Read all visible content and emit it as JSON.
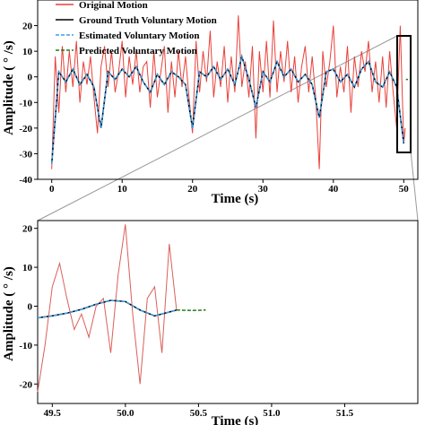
{
  "chart_data": [
    {
      "type": "line",
      "xlabel": "Time (s)",
      "ylabel": "Amplitude ( ° /s)",
      "xlim": [
        -2,
        52
      ],
      "ylim": [
        -40,
        30
      ],
      "xticks": [
        0,
        10,
        20,
        30,
        40,
        50
      ],
      "yticks": [
        -40,
        -30,
        -20,
        -10,
        0,
        10,
        20
      ],
      "legend_position": "top-left",
      "series": [
        {
          "name": "Original Motion",
          "color": "#e8413a",
          "style": "solid",
          "x": [
            0,
            0.5,
            1,
            1.5,
            2,
            2.5,
            3,
            3.5,
            4,
            4.5,
            5,
            5.5,
            6,
            6.5,
            7,
            7.5,
            8,
            8.5,
            9,
            9.5,
            10,
            10.5,
            11,
            11.5,
            12,
            12.5,
            13,
            13.5,
            14,
            14.5,
            15,
            15.5,
            16,
            16.5,
            17,
            17.5,
            18,
            18.5,
            19,
            19.5,
            20,
            20.5,
            21,
            21.5,
            22,
            22.5,
            23,
            23.5,
            24,
            24.5,
            25,
            25.5,
            26,
            26.5,
            27,
            27.5,
            28,
            28.5,
            29,
            29.5,
            30,
            30.5,
            31,
            31.5,
            32,
            32.5,
            33,
            33.5,
            34,
            34.5,
            35,
            35.5,
            36,
            36.5,
            37,
            37.5,
            38,
            38.5,
            39,
            39.5,
            40,
            40.5,
            41,
            41.5,
            42,
            42.5,
            43,
            43.5,
            44,
            44.5,
            45,
            45.5,
            46,
            46.5,
            47,
            47.5,
            48,
            48.5,
            49,
            49.5,
            50,
            50.2
          ],
          "y": [
            -36,
            8,
            -14,
            12,
            -6,
            10,
            -4,
            14,
            -10,
            6,
            -3,
            8,
            -8,
            -22,
            4,
            12,
            -4,
            10,
            -6,
            2,
            14,
            -8,
            8,
            -3,
            10,
            -6,
            4,
            6,
            -12,
            10,
            -8,
            2,
            12,
            -14,
            6,
            -8,
            10,
            -4,
            8,
            -8,
            -22,
            14,
            -6,
            10,
            -2,
            18,
            -8,
            6,
            -4,
            12,
            -10,
            8,
            -6,
            24,
            -4,
            6,
            -8,
            12,
            -24,
            10,
            -6,
            14,
            -8,
            22,
            -6,
            10,
            -2,
            14,
            -6,
            8,
            -10,
            4,
            12,
            -6,
            8,
            -8,
            -36,
            10,
            -4,
            6,
            20,
            -8,
            4,
            -6,
            12,
            -14,
            8,
            -4,
            10,
            2,
            14,
            -6,
            6,
            -10,
            8,
            -12,
            10,
            -6,
            -20,
            20,
            -26,
            -20
          ]
        },
        {
          "name": "Ground Truth Voluntary Motion",
          "color": "#000000",
          "style": "solid",
          "x": [
            0,
            1,
            2,
            3,
            4,
            5,
            6,
            7,
            8,
            9,
            10,
            11,
            12,
            13,
            14,
            15,
            16,
            17,
            18,
            19,
            20,
            21,
            22,
            23,
            24,
            25,
            26,
            27,
            28,
            29,
            30,
            31,
            32,
            33,
            34,
            35,
            36,
            37,
            38,
            39,
            40,
            41,
            42,
            43,
            44,
            45,
            46,
            47,
            48,
            49,
            50
          ],
          "y": [
            -34,
            2,
            -2,
            3,
            -3,
            1,
            -4,
            -20,
            2,
            -1,
            3,
            0,
            4,
            -2,
            -6,
            1,
            -3,
            2,
            0,
            -3,
            -20,
            2,
            0,
            4,
            -1,
            3,
            -3,
            8,
            -1,
            -12,
            2,
            -2,
            6,
            0,
            3,
            -2,
            1,
            -3,
            -16,
            2,
            3,
            -2,
            1,
            -4,
            3,
            6,
            -2,
            -4,
            2,
            -4,
            -26
          ]
        },
        {
          "name": "Estimated Voluntary Motion",
          "color": "#3a9ee8",
          "style": "dashed",
          "x": [
            0,
            1,
            2,
            3,
            4,
            5,
            6,
            7,
            8,
            9,
            10,
            11,
            12,
            13,
            14,
            15,
            16,
            17,
            18,
            19,
            20,
            21,
            22,
            23,
            24,
            25,
            26,
            27,
            28,
            29,
            30,
            31,
            32,
            33,
            34,
            35,
            36,
            37,
            38,
            39,
            40,
            41,
            42,
            43,
            44,
            45,
            46,
            47,
            48,
            49,
            50
          ],
          "y": [
            -34,
            2,
            -2,
            3,
            -3,
            1,
            -4,
            -20,
            2,
            -1,
            3,
            0,
            4,
            -2,
            -6,
            1,
            -3,
            2,
            0,
            -3,
            -20,
            2,
            0,
            4,
            -1,
            3,
            -3,
            8,
            -1,
            -12,
            2,
            -2,
            6,
            0,
            3,
            -2,
            1,
            -3,
            -16,
            2,
            3,
            -2,
            1,
            -4,
            3,
            6,
            -2,
            -4,
            2,
            -4,
            -26
          ]
        },
        {
          "name": "Predicted Voluntary Motion",
          "color": "#1e7d1e",
          "style": "dashed",
          "x": [
            50.3,
            50.6
          ],
          "y": [
            -1,
            -1
          ]
        }
      ]
    },
    {
      "type": "line",
      "xlabel": "Time (s)",
      "ylabel": "Amplitude ( ° /s)",
      "xlim": [
        49.4,
        52
      ],
      "ylim": [
        -25,
        22
      ],
      "xticks": [
        49.5,
        50.0,
        50.5,
        51.0,
        51.5
      ],
      "xtick_labels": [
        "49.5",
        "50.0",
        "50.5",
        "51.0",
        "51.5"
      ],
      "yticks": [
        -20,
        -10,
        0,
        10,
        20
      ],
      "series": [
        {
          "name": "Original Motion",
          "color": "#d9605a",
          "style": "solid",
          "x": [
            49.4,
            49.45,
            49.5,
            49.55,
            49.6,
            49.65,
            49.7,
            49.75,
            49.8,
            49.85,
            49.9,
            49.95,
            50.0,
            50.05,
            50.1,
            50.15,
            50.2,
            50.25,
            50.3,
            50.35
          ],
          "y": [
            -22,
            -10,
            5,
            11,
            2,
            -6,
            -2,
            -8,
            0,
            2,
            -12,
            8,
            21,
            -2,
            -20,
            2,
            5,
            -12,
            16,
            -1
          ]
        },
        {
          "name": "Ground Truth Voluntary Motion",
          "color": "#000000",
          "style": "solid",
          "x": [
            49.4,
            49.5,
            49.6,
            49.7,
            49.8,
            49.9,
            50.0,
            50.1,
            50.2,
            50.3,
            50.35
          ],
          "y": [
            -3,
            -2.5,
            -1.8,
            -0.8,
            0.5,
            1.5,
            1.2,
            -1,
            -2.5,
            -1.5,
            -1
          ]
        },
        {
          "name": "Estimated Voluntary Motion",
          "color": "#3a9ee8",
          "style": "dashed",
          "x": [
            49.4,
            49.5,
            49.6,
            49.7,
            49.8,
            49.9,
            50.0,
            50.1,
            50.2,
            50.3,
            50.35
          ],
          "y": [
            -3,
            -2.5,
            -1.8,
            -0.8,
            0.5,
            1.5,
            1.2,
            -1,
            -2.5,
            -1.5,
            -1
          ]
        },
        {
          "name": "Predicted Voluntary Motion",
          "color": "#1e7d1e",
          "style": "dashed",
          "x": [
            50.35,
            50.45,
            50.55
          ],
          "y": [
            -1,
            -1.1,
            -1
          ]
        }
      ]
    }
  ]
}
